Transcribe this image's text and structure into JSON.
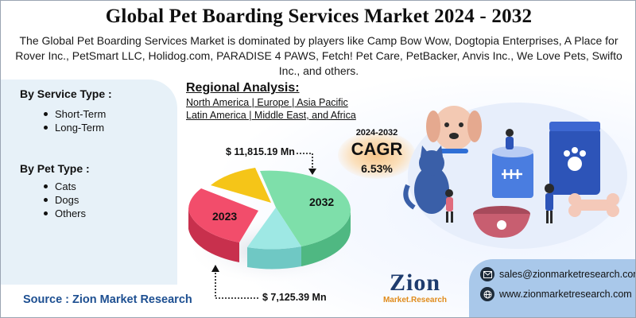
{
  "header": {
    "title": "Global Pet Boarding Services Market 2024 - 2032",
    "subtitle": "The Global Pet Boarding Services Market is dominated by players like Camp Bow Wow, Dogtopia Enterprises, A Place for Rover Inc., PetSmart LLC, Holidog.com, PARADISE 4 PAWS, Fetch! Pet Care, PetBacker, Anvis Inc., We Love Pets, Swifto Inc., and others."
  },
  "segments": {
    "service": {
      "title": "By Service Type  :",
      "items": [
        "Short-Term",
        "Long-Term"
      ]
    },
    "pet": {
      "title": "By Pet Type :",
      "items": [
        "Cats",
        "Dogs",
        "Others"
      ]
    }
  },
  "regional": {
    "title": "Regional Analysis:",
    "line1": "North America | Europe | Asia Pacific",
    "line2": "Latin America | Middle East, and Africa"
  },
  "market": {
    "value_2032": "$ 11,815.19 Mn",
    "value_2023": "$ 7,125.39 Mn",
    "label_2023": "2023",
    "label_2032": "2032"
  },
  "cagr": {
    "years": "2024-2032",
    "label": "CAGR",
    "value": "6.53%"
  },
  "source": "Source : Zion Market Research",
  "contact": {
    "email": "sales@zionmarketresearch.com",
    "website": "www.zionmarketresearch.com"
  },
  "logo": {
    "word": "Zion",
    "sub": "Market.Research"
  },
  "colors": {
    "pie_green": "#7edfaa",
    "pie_red": "#f24d6b",
    "pie_yellow": "#f5c518",
    "pie_cyan": "#9ee8e4",
    "source_blue": "#1d4f91",
    "contact_bg": "#a9c8ea"
  }
}
